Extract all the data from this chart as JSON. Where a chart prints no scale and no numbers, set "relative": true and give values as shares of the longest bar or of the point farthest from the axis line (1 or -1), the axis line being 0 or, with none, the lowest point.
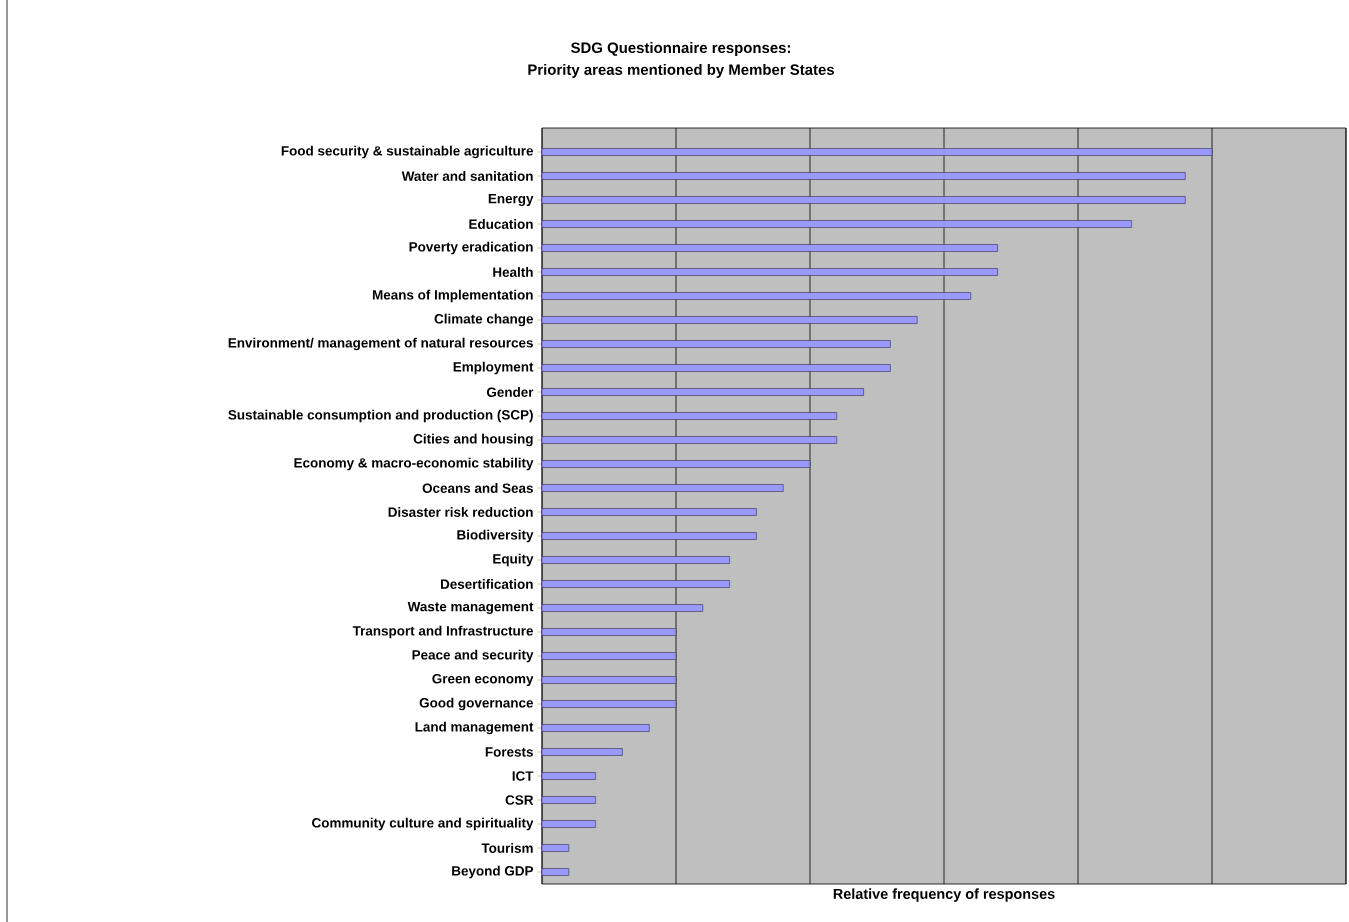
{
  "chart_data": {
    "type": "bar",
    "orientation": "horizontal",
    "relative": true,
    "title": "SDG Questionnaire responses:\nPriority areas mentioned by Member States",
    "xlabel": "Relative frequency of responses",
    "grid": "x",
    "color": "#9999ff",
    "categories": [
      "Food security & sustainable agriculture",
      "Water and sanitation",
      "Energy",
      "Education",
      "Poverty eradication",
      "Health",
      "Means of Implementation",
      "Climate change",
      "Environment/ management of natural resources",
      "Employment",
      "Gender",
      "Sustainable consumption and production (SCP)",
      "Cities and housing",
      "Economy & macro-economic stability",
      "Oceans and Seas",
      "Disaster risk reduction",
      "Biodiversity",
      "Equity",
      "Desertification",
      "Waste management",
      "Transport and Infrastructure",
      "Peace and security",
      "Green economy",
      "Good governance",
      "Land management",
      "Forests",
      "ICT",
      "CSR",
      "Community culture and spirituality",
      "Tourism",
      "Beyond GDP"
    ],
    "values": [
      1.0,
      0.96,
      0.96,
      0.88,
      0.68,
      0.68,
      0.64,
      0.56,
      0.52,
      0.52,
      0.48,
      0.44,
      0.44,
      0.4,
      0.36,
      0.32,
      0.32,
      0.28,
      0.28,
      0.24,
      0.2,
      0.2,
      0.2,
      0.2,
      0.16,
      0.12,
      0.08,
      0.08,
      0.08,
      0.04,
      0.04
    ]
  }
}
